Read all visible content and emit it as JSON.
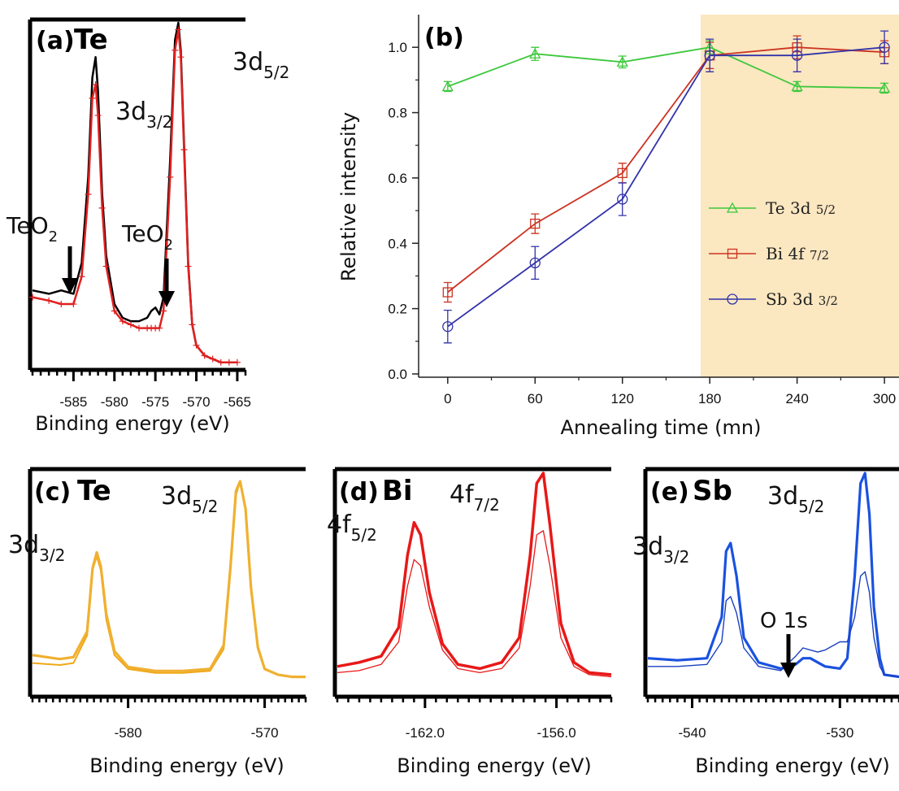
{
  "chart_data": [
    {
      "panel": "(a)",
      "type": "line",
      "element": "Te",
      "xlabel": "Binding energy (eV)",
      "xticks": [
        "-585",
        "-580",
        "-575",
        "-570",
        "-565"
      ],
      "xlim": [
        -590,
        -564
      ],
      "annotations": [
        "TeO2",
        "TeO2",
        "3d3/2",
        "3d5/2"
      ],
      "series": [
        {
          "color": "#000000",
          "x": [
            -590,
            -588,
            -586.5,
            -585,
            -584,
            -583.2,
            -582.7,
            -582.3,
            -582,
            -581.5,
            -581,
            -580,
            -579,
            -578,
            -577,
            -576,
            -575.5,
            -575,
            -574.5,
            -574,
            -573.2,
            -572.6,
            -572.2,
            -571.9,
            -571.5,
            -571,
            -570.5,
            -570,
            -569,
            -568,
            -567,
            -566,
            -565
          ],
          "y": [
            0.22,
            0.21,
            0.22,
            0.21,
            0.3,
            0.55,
            0.84,
            0.9,
            0.8,
            0.5,
            0.32,
            0.18,
            0.14,
            0.13,
            0.13,
            0.14,
            0.16,
            0.17,
            0.15,
            0.2,
            0.6,
            0.95,
            1.0,
            0.92,
            0.65,
            0.3,
            0.12,
            0.06,
            0.03,
            0.02,
            0.01,
            0.01,
            0.01
          ]
        },
        {
          "color": "#e02020",
          "x": [
            -590,
            -588,
            -586.5,
            -585,
            -584,
            -583.2,
            -582.7,
            -582.3,
            -582,
            -581.5,
            -581,
            -580,
            -579,
            -578,
            -577,
            -576,
            -575.5,
            -575,
            -574.5,
            -574,
            -573.2,
            -572.6,
            -572.2,
            -571.9,
            -571.5,
            -571,
            -570.5,
            -570,
            -569,
            -568,
            -567,
            -566,
            -565
          ],
          "y": [
            0.2,
            0.19,
            0.18,
            0.18,
            0.26,
            0.5,
            0.78,
            0.82,
            0.73,
            0.46,
            0.29,
            0.16,
            0.13,
            0.12,
            0.11,
            0.11,
            0.11,
            0.11,
            0.11,
            0.16,
            0.55,
            0.92,
            0.98,
            0.9,
            0.63,
            0.29,
            0.12,
            0.06,
            0.03,
            0.02,
            0.01,
            0.01,
            0.01
          ]
        }
      ]
    },
    {
      "panel": "(b)",
      "type": "line",
      "xlabel": "Annealing time (mn)",
      "ylabel": "Relative intensity",
      "xlim": [
        -20,
        310
      ],
      "ylim": [
        -0.01,
        1.1
      ],
      "xticks": [
        0,
        60,
        120,
        180,
        240,
        300
      ],
      "yticks": [
        "0.0",
        "0.2",
        "0.4",
        "0.6",
        "0.8",
        "1.0"
      ],
      "shaded_region": [
        180,
        310
      ],
      "x": [
        0,
        60,
        120,
        180,
        240,
        300
      ],
      "series": [
        {
          "name": "Te 3d",
          "sub": "5/2",
          "marker": "triangle",
          "color": "#3cc83c",
          "values": [
            0.88,
            0.98,
            0.955,
            1.0,
            0.88,
            0.875
          ],
          "err": [
            0.015,
            0.02,
            0.018,
            0.02,
            0.015,
            0.015
          ]
        },
        {
          "name": "Bi 4f",
          "sub": "7/2",
          "marker": "square",
          "color": "#cc3322",
          "values": [
            0.25,
            0.46,
            0.615,
            0.975,
            1.0,
            0.985
          ],
          "err": [
            0.03,
            0.03,
            0.03,
            0.04,
            0.035,
            0.035
          ]
        },
        {
          "name": "Sb 3d",
          "sub": "3/2",
          "marker": "circle",
          "color": "#3333aa",
          "values": [
            0.145,
            0.34,
            0.535,
            0.975,
            0.975,
            1.0
          ],
          "err": [
            0.05,
            0.05,
            0.05,
            0.05,
            0.05,
            0.05
          ]
        }
      ]
    },
    {
      "panel": "(c)",
      "type": "line",
      "element": "Te",
      "xlabel": "Binding energy (eV)",
      "xticks": [
        "-580",
        "-570"
      ],
      "xlim": [
        -587,
        -567
      ],
      "annotations": [
        "3d3/2",
        "3d5/2"
      ],
      "series": [
        {
          "color": "#f0a818",
          "x": [
            -587,
            -585,
            -584,
            -583,
            -582.6,
            -582.3,
            -582,
            -581.6,
            -581,
            -580,
            -578,
            -576,
            -574,
            -573,
            -572.5,
            -572.1,
            -571.8,
            -571.4,
            -571,
            -570.5,
            -570,
            -569,
            -568,
            -567
          ],
          "y": [
            0.08,
            0.07,
            0.08,
            0.22,
            0.55,
            0.62,
            0.55,
            0.3,
            0.12,
            0.05,
            0.03,
            0.03,
            0.04,
            0.15,
            0.55,
            0.93,
            1.0,
            0.85,
            0.45,
            0.15,
            0.05,
            0.02,
            0.01,
            0.01
          ]
        },
        {
          "color": "#f0b030",
          "x": [
            -587,
            -585,
            -584,
            -583,
            -582.6,
            -582.3,
            -582,
            -581.6,
            -581,
            -580,
            -578,
            -576,
            -574,
            -573,
            -572.5,
            -572.1,
            -571.8,
            -571.4,
            -571,
            -570.5,
            -570,
            -569,
            -568,
            -567
          ],
          "y": [
            0.12,
            0.1,
            0.11,
            0.24,
            0.56,
            0.64,
            0.57,
            0.33,
            0.14,
            0.06,
            0.04,
            0.04,
            0.05,
            0.17,
            0.57,
            0.95,
            1.0,
            0.86,
            0.46,
            0.16,
            0.05,
            0.02,
            0.01,
            0.01
          ]
        }
      ]
    },
    {
      "panel": "(d)",
      "type": "line",
      "element": "Bi",
      "xlabel": "Binding energy (eV)",
      "xticks": [
        "-162.0",
        "-156.0"
      ],
      "xlim": [
        -166,
        -153.5
      ],
      "annotations": [
        "4f5/2",
        "4f7/2"
      ],
      "series": [
        {
          "color": "#e81818",
          "x": [
            -166,
            -165,
            -164,
            -163.2,
            -162.8,
            -162.5,
            -162.2,
            -161.8,
            -161.2,
            -160.5,
            -159.5,
            -158.5,
            -157.7,
            -157.2,
            -156.9,
            -156.6,
            -156.3,
            -155.8,
            -155.2,
            -154.5,
            -153.5
          ],
          "y": [
            0.03,
            0.04,
            0.07,
            0.18,
            0.45,
            0.58,
            0.55,
            0.35,
            0.14,
            0.05,
            0.03,
            0.05,
            0.15,
            0.45,
            0.7,
            0.72,
            0.55,
            0.2,
            0.06,
            0.02,
            0.01
          ]
        },
        {
          "color": "#e81818",
          "x": [
            -166,
            -165,
            -164,
            -163.2,
            -162.8,
            -162.5,
            -162.2,
            -161.8,
            -161.2,
            -160.5,
            -159.5,
            -158.5,
            -157.7,
            -157.2,
            -156.9,
            -156.6,
            -156.3,
            -155.8,
            -155.2,
            -154.5,
            -153.5
          ],
          "y": [
            0.06,
            0.08,
            0.11,
            0.25,
            0.6,
            0.76,
            0.7,
            0.42,
            0.17,
            0.07,
            0.05,
            0.08,
            0.2,
            0.6,
            0.95,
            1.0,
            0.75,
            0.27,
            0.08,
            0.03,
            0.02
          ]
        }
      ]
    },
    {
      "panel": "(e)",
      "type": "line",
      "element": "Sb",
      "xlabel": "Binding energy (eV)",
      "xticks": [
        "-540",
        "-530"
      ],
      "xlim": [
        -543,
        -526
      ],
      "annotations": [
        "3d3/2",
        "3d5/2",
        "O 1s"
      ],
      "series": [
        {
          "color": "#1a52e0",
          "x": [
            -543,
            -541,
            -539,
            -538,
            -537.7,
            -537.4,
            -537,
            -536.5,
            -535.5,
            -534,
            -533,
            -532.5,
            -532,
            -531.5,
            -531,
            -530,
            -529.5,
            -529,
            -528.6,
            -528.3,
            -528,
            -527.7,
            -527.3,
            -527,
            -526
          ],
          "y": [
            0.1,
            0.09,
            0.1,
            0.3,
            0.62,
            0.66,
            0.5,
            0.2,
            0.08,
            0.05,
            0.07,
            0.1,
            0.1,
            0.08,
            0.06,
            0.05,
            0.1,
            0.5,
            0.95,
            1.0,
            0.8,
            0.35,
            0.1,
            0.02,
            0.01
          ]
        },
        {
          "color": "#1a40c0",
          "x": [
            -543,
            -541,
            -539,
            -538,
            -537.7,
            -537.4,
            -537,
            -536.5,
            -535.5,
            -534,
            -533,
            -532.5,
            -532,
            -531.5,
            -531,
            -530,
            -529.5,
            -529,
            -528.6,
            -528.3,
            -528,
            -527.7,
            -527.3,
            -527,
            -526
          ],
          "y": [
            0.06,
            0.06,
            0.07,
            0.18,
            0.38,
            0.4,
            0.32,
            0.15,
            0.06,
            0.04,
            0.11,
            0.15,
            0.14,
            0.13,
            0.14,
            0.18,
            0.18,
            0.3,
            0.5,
            0.52,
            0.42,
            0.2,
            0.06,
            0.02,
            0.01
          ]
        }
      ]
    }
  ],
  "labels": {
    "a_letter": "(a)",
    "a_el": "Te",
    "a_peak1_base": "3d",
    "a_peak1_sub": "3/2",
    "a_peak2_base": "3d",
    "a_peak2_sub": "5/2",
    "a_ox1_base": "TeO",
    "a_ox1_sub": "2",
    "a_ox2_base": "TeO",
    "a_ox2_sub": "2",
    "b_letter": "(b)",
    "c_letter": "(c)",
    "c_el": "Te",
    "c_peak1_base": "3d",
    "c_peak1_sub": "3/2",
    "c_peak2_base": "3d",
    "c_peak2_sub": "5/2",
    "d_letter": "(d)",
    "d_el": "Bi",
    "d_peak1_base": "4f",
    "d_peak1_sub": "5/2",
    "d_peak2_base": "4f",
    "d_peak2_sub": "7/2",
    "e_letter": "(e)",
    "e_el": "Sb",
    "e_peak1_base": "3d",
    "e_peak1_sub": "3/2",
    "e_peak2_base": "3d",
    "e_peak2_sub": "5/2",
    "e_o1s": "O 1s"
  },
  "colors": {
    "shade": "#fbe7c0",
    "te_a_raw": "#000000",
    "te_a_fit": "#e02020",
    "te_c": "#f0a818",
    "bi_d": "#e81818",
    "sb_e": "#1a52e0"
  }
}
